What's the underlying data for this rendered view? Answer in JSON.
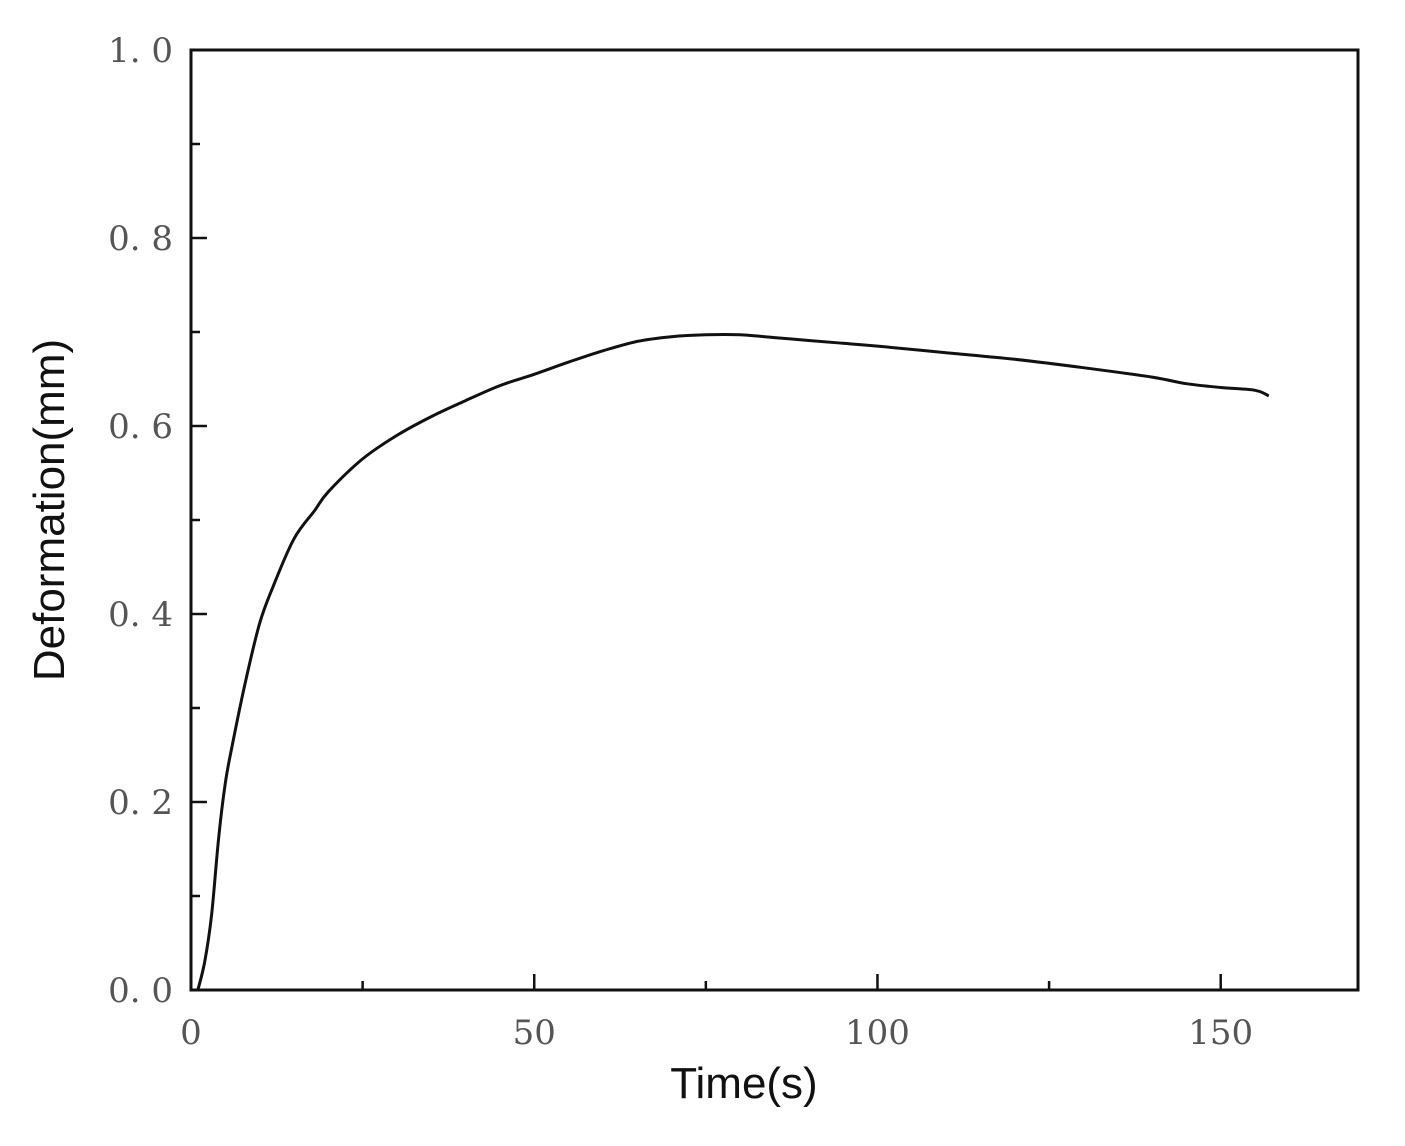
{
  "chart_data": {
    "type": "line",
    "title": "",
    "xlabel": "Time(s)",
    "ylabel": "Deformation(mm)",
    "xlim": [
      0,
      170
    ],
    "ylim": [
      0.0,
      1.0
    ],
    "x_ticks": [
      0,
      50,
      100,
      150
    ],
    "x_tick_labels": [
      "0",
      "50",
      "100",
      "150"
    ],
    "y_ticks": [
      0.0,
      0.2,
      0.4,
      0.6,
      0.8,
      1.0
    ],
    "y_tick_labels": [
      "0. 0",
      "0. 2",
      "0. 4",
      "0. 6",
      "0. 8",
      "1. 0"
    ],
    "grid": false,
    "legend": "none",
    "line_color": "#111111",
    "series": [
      {
        "x": [
          1,
          2,
          3,
          4,
          5,
          6,
          8,
          10,
          12,
          15,
          18,
          20,
          25,
          30,
          35,
          40,
          45,
          50,
          55,
          60,
          65,
          70,
          75,
          80,
          85,
          90,
          95,
          100,
          110,
          120,
          130,
          140,
          145,
          150,
          155,
          157
        ],
        "y": [
          0.0,
          0.03,
          0.08,
          0.16,
          0.22,
          0.26,
          0.33,
          0.39,
          0.43,
          0.48,
          0.51,
          0.53,
          0.565,
          0.59,
          0.61,
          0.627,
          0.643,
          0.655,
          0.668,
          0.68,
          0.69,
          0.695,
          0.697,
          0.697,
          0.694,
          0.691,
          0.688,
          0.685,
          0.678,
          0.671,
          0.662,
          0.652,
          0.645,
          0.641,
          0.638,
          0.632
        ]
      }
    ]
  }
}
